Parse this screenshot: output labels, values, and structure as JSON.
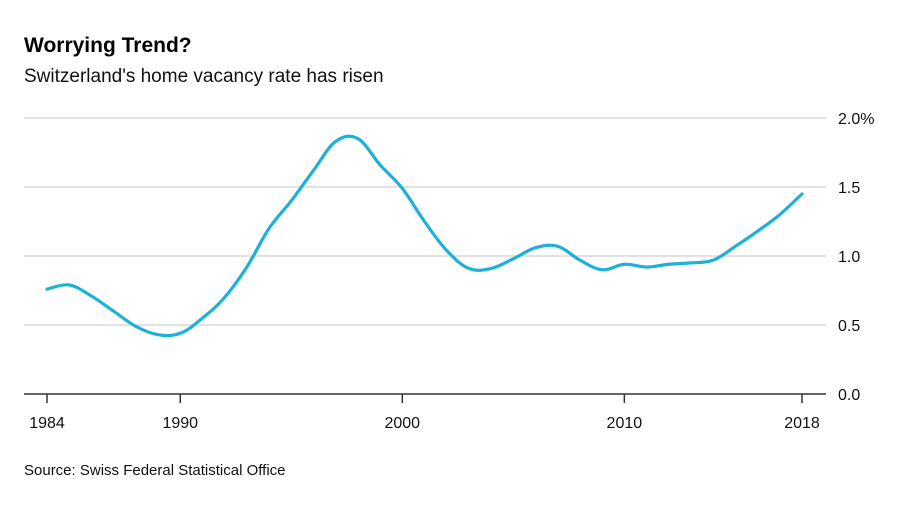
{
  "header": {
    "title": "Worrying Trend?",
    "subtitle": "Switzerland's home vacancy rate has risen"
  },
  "footer": {
    "source": "Source: Swiss Federal Statistical Office"
  },
  "colors": {
    "line": "#1fb0d8",
    "grid": "#d9d9d9",
    "axis": "#333333"
  },
  "chart_data": {
    "type": "line",
    "title": "Worrying Trend?",
    "subtitle": "Switzerland's home vacancy rate has risen",
    "xlabel": "",
    "ylabel": "",
    "xlim": [
      1984,
      2018
    ],
    "ylim": [
      0,
      2.0
    ],
    "grid": true,
    "y_axis_position": "right",
    "x_ticks": [
      1984,
      1990,
      2000,
      2010,
      2018
    ],
    "x_tick_labels": [
      "1984",
      "1990",
      "2000",
      "2010",
      "2018"
    ],
    "y_ticks": [
      0,
      0.5,
      1.0,
      1.5,
      2.0
    ],
    "y_tick_labels": [
      "0.0",
      "0.5",
      "1.0",
      "1.5",
      "2.0%"
    ],
    "series": [
      {
        "x": [
          1984,
          1985,
          1986,
          1987,
          1988,
          1989,
          1990,
          1991,
          1992,
          1993,
          1994,
          1995,
          1996,
          1997,
          1998,
          1999,
          2000,
          2001,
          2002,
          2003,
          2004,
          2005,
          2006,
          2007,
          2008,
          2009,
          2010,
          2011,
          2012,
          2013,
          2014,
          2015,
          2016,
          2017,
          2018
        ],
        "values": [
          0.76,
          0.79,
          0.71,
          0.6,
          0.49,
          0.43,
          0.44,
          0.55,
          0.7,
          0.92,
          1.2,
          1.4,
          1.62,
          1.83,
          1.85,
          1.66,
          1.49,
          1.25,
          1.04,
          0.91,
          0.91,
          0.98,
          1.06,
          1.07,
          0.97,
          0.9,
          0.94,
          0.92,
          0.94,
          0.95,
          0.97,
          1.07,
          1.18,
          1.3,
          1.45
        ]
      }
    ]
  }
}
